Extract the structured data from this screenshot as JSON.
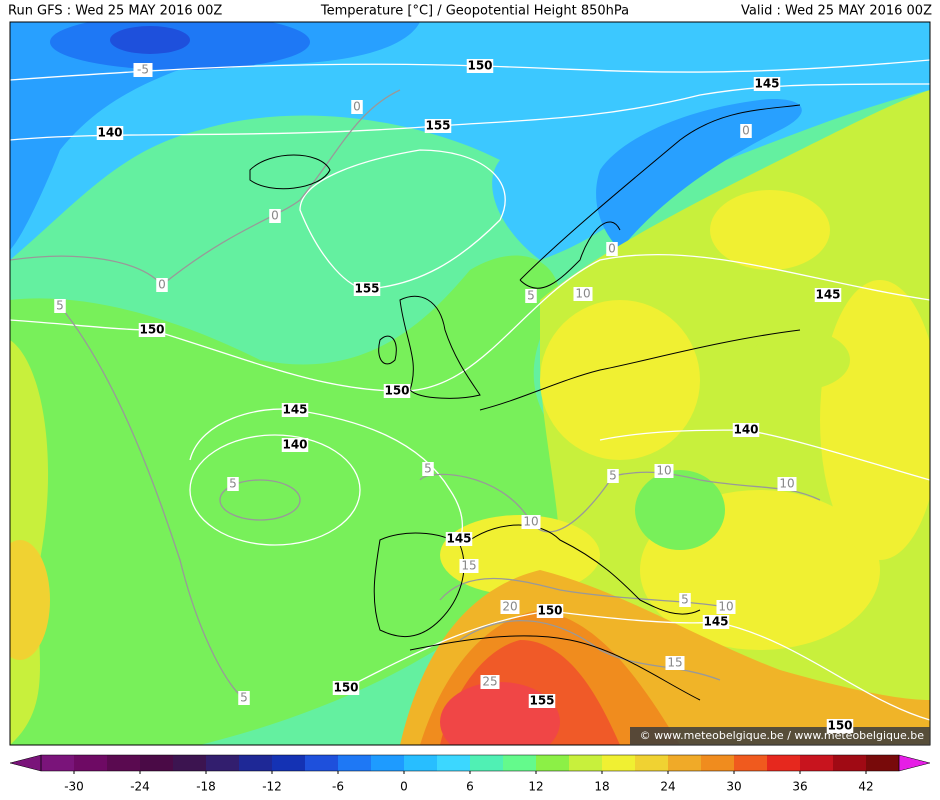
{
  "header": {
    "run": "Run GFS : Wed 25 MAY 2016 00Z",
    "title": "Temperature [°C] / Geopotential Height 850hPa",
    "valid": "Valid : Wed 25 MAY 2016 00Z"
  },
  "map": {
    "height_labels": [
      150,
      145,
      140,
      155,
      155,
      145,
      150,
      150,
      145,
      140,
      140,
      145,
      150,
      145,
      150,
      155,
      150
    ],
    "temperature_labels": [
      -5,
      0,
      0,
      0,
      0,
      0,
      5,
      5,
      10,
      5,
      10,
      5,
      10,
      5,
      10,
      15,
      20,
      5,
      10,
      15,
      25,
      5
    ],
    "watermark": "© www.meteobelgique.be / www.meteobelgique.be"
  },
  "colorbar": {
    "ticks": [
      -30,
      -24,
      -18,
      -12,
      -6,
      0,
      6,
      12,
      18,
      24,
      30,
      36,
      42
    ],
    "colors": [
      "#7a147a",
      "#6e0a64",
      "#5a0a50",
      "#4a0a46",
      "#3c1450",
      "#321e6e",
      "#1e2896",
      "#1432b4",
      "#1e50dc",
      "#1e78f5",
      "#1e9bff",
      "#28beff",
      "#3cd7ff",
      "#50f0b4",
      "#64fa8c",
      "#8cf046",
      "#c8f03c",
      "#f0f032",
      "#f0d232",
      "#f0aa28",
      "#f08c1e",
      "#f05a1e",
      "#e6281e",
      "#c8141e",
      "#a00a14",
      "#780a0a"
    ]
  }
}
